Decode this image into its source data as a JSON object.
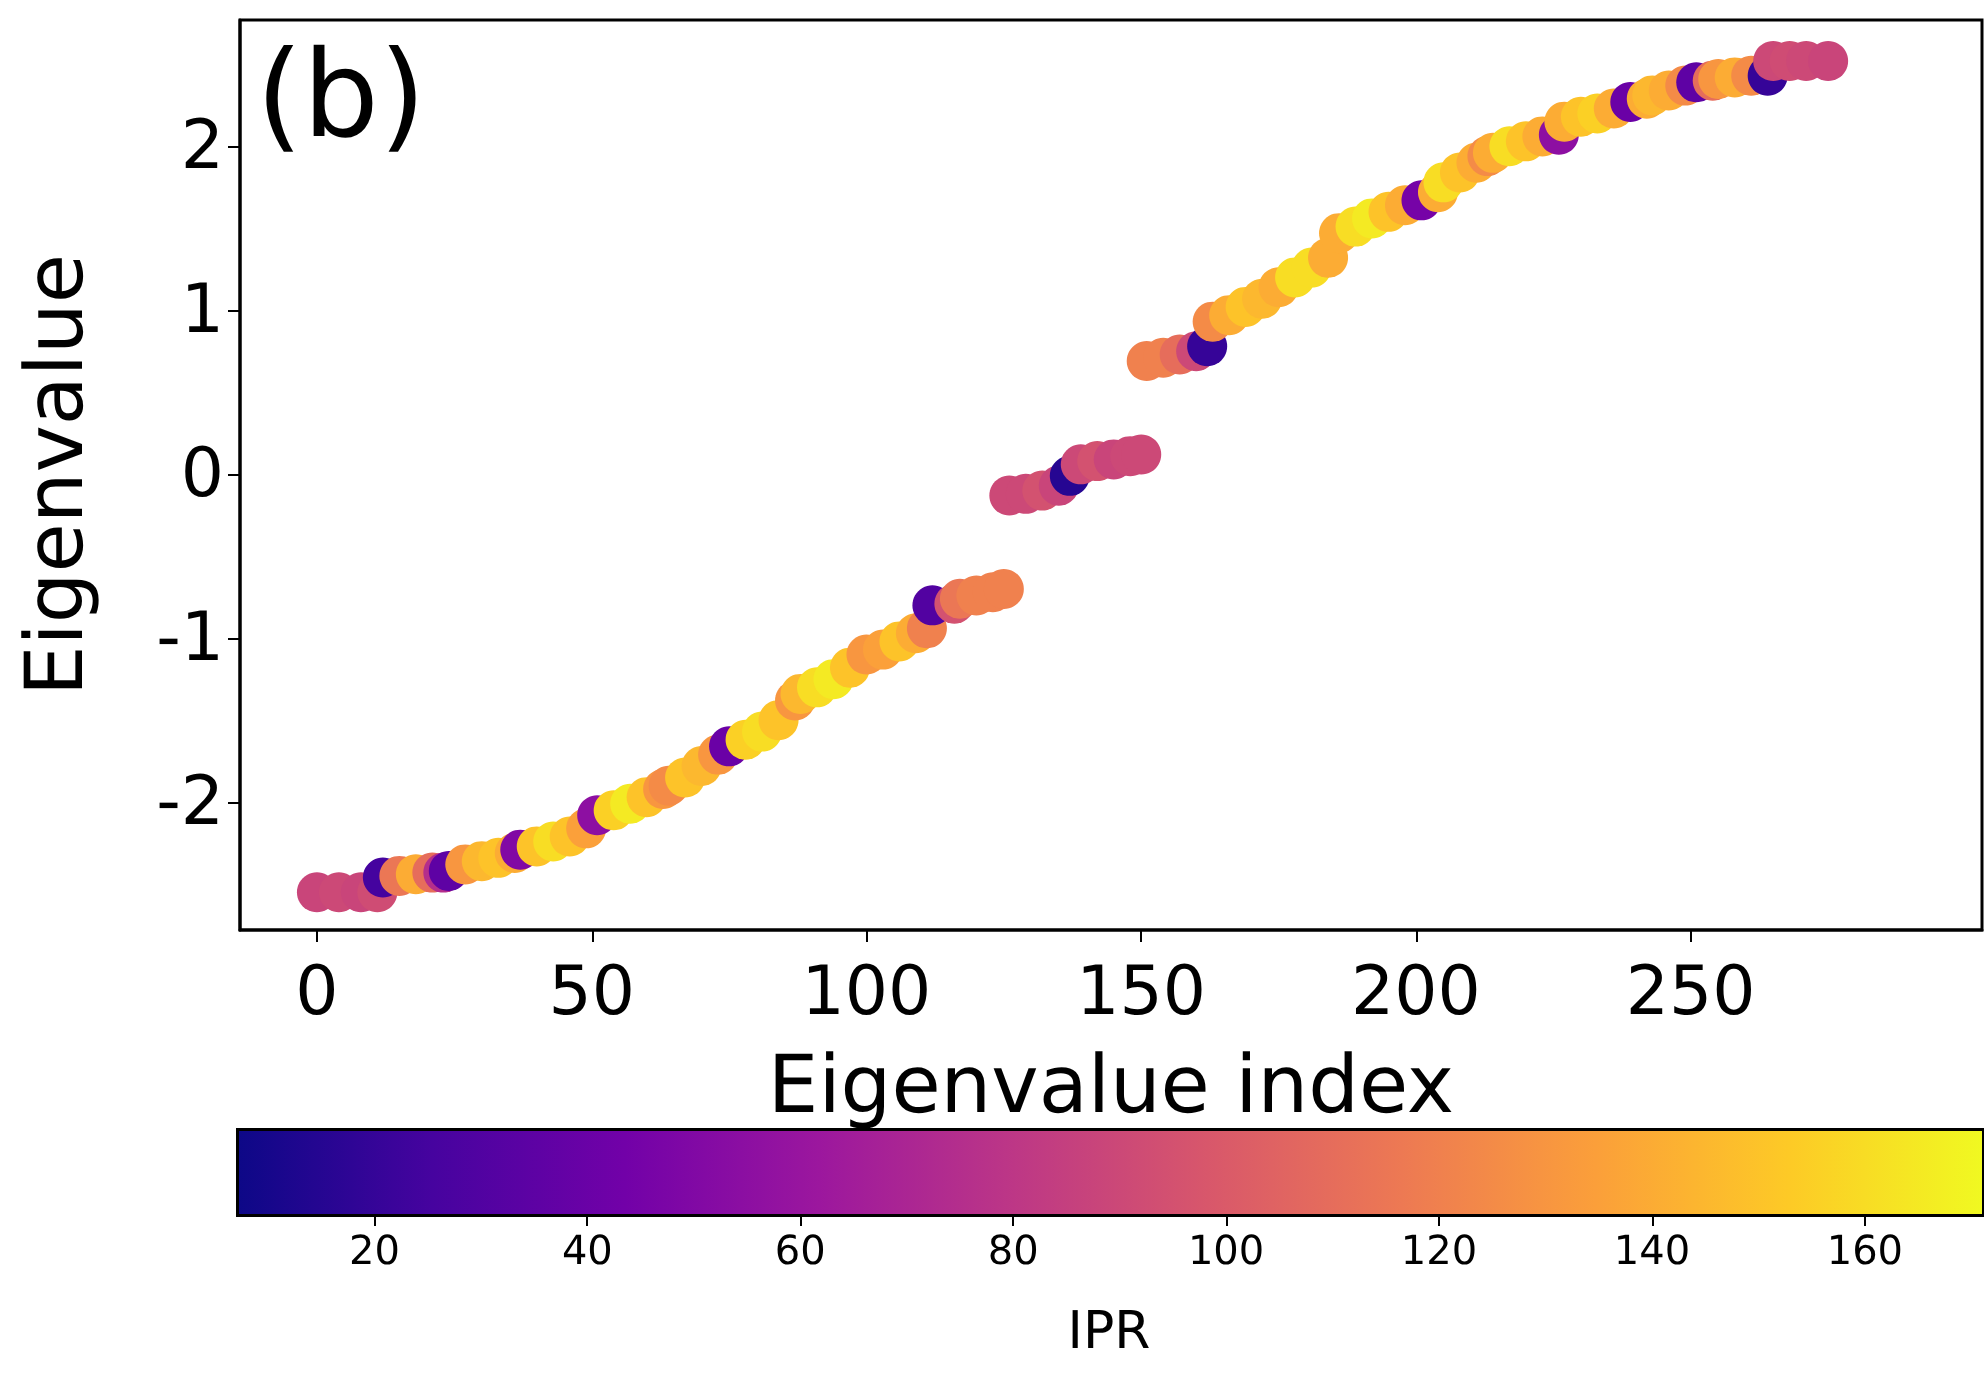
{
  "chart_data": {
    "type": "scatter",
    "xlabel": "Eigenvalue index",
    "ylabel": "Eigenvalue",
    "clabel": "IPR",
    "annotations": [
      "(b)"
    ],
    "x": [
      0,
      4,
      8,
      11,
      12,
      15,
      18,
      21,
      23,
      24,
      27,
      30,
      33,
      36,
      37,
      40,
      43,
      46,
      49,
      51,
      54,
      57,
      60,
      63,
      64,
      67,
      70,
      73,
      75,
      78,
      81,
      84,
      87,
      88,
      91,
      94,
      97,
      100,
      103,
      106,
      109,
      111,
      112,
      116,
      117,
      120,
      123,
      125,
      126,
      129,
      132,
      135,
      137,
      139,
      142,
      145,
      148,
      150,
      151,
      154,
      157,
      160,
      162,
      163,
      166,
      169,
      172,
      175,
      178,
      181,
      184,
      186,
      189,
      192,
      195,
      198,
      201,
      204,
      205,
      208,
      211,
      213,
      214,
      217,
      220,
      223,
      226,
      227,
      230,
      233,
      236,
      239,
      242,
      243,
      246,
      249,
      251,
      254,
      255,
      258,
      261,
      264,
      265,
      268,
      271,
      275
    ],
    "values": [
      -2.55,
      -2.55,
      -2.55,
      -2.55,
      -2.46,
      -2.45,
      -2.44,
      -2.43,
      -2.43,
      -2.42,
      -2.38,
      -2.36,
      -2.34,
      -2.31,
      -2.29,
      -2.27,
      -2.24,
      -2.21,
      -2.16,
      -2.08,
      -2.05,
      -2.01,
      -1.97,
      -1.92,
      -1.9,
      -1.85,
      -1.78,
      -1.71,
      -1.66,
      -1.62,
      -1.57,
      -1.5,
      -1.38,
      -1.34,
      -1.3,
      -1.25,
      -1.18,
      -1.1,
      -1.07,
      -1.02,
      -0.97,
      -0.94,
      -0.8,
      -0.79,
      -0.76,
      -0.74,
      -0.72,
      -0.7,
      -0.13,
      -0.12,
      -0.1,
      -0.07,
      -0.01,
      0.06,
      0.08,
      0.09,
      0.11,
      0.12,
      0.69,
      0.71,
      0.73,
      0.75,
      0.78,
      0.93,
      0.97,
      1.02,
      1.07,
      1.14,
      1.2,
      1.26,
      1.32,
      1.47,
      1.51,
      1.56,
      1.6,
      1.64,
      1.67,
      1.72,
      1.78,
      1.84,
      1.9,
      1.94,
      1.96,
      2.0,
      2.03,
      2.06,
      2.07,
      2.15,
      2.18,
      2.2,
      2.23,
      2.27,
      2.29,
      2.31,
      2.34,
      2.37,
      2.39,
      2.4,
      2.41,
      2.42,
      2.43,
      2.43,
      2.52,
      2.52,
      2.52,
      2.52
    ],
    "cvalues": [
      88,
      90,
      88,
      92,
      25,
      115,
      140,
      110,
      75,
      35,
      130,
      145,
      150,
      140,
      50,
      150,
      160,
      150,
      135,
      55,
      155,
      165,
      150,
      130,
      125,
      150,
      145,
      130,
      40,
      155,
      160,
      150,
      130,
      145,
      160,
      165,
      150,
      130,
      135,
      150,
      140,
      120,
      30,
      95,
      115,
      120,
      120,
      120,
      90,
      90,
      95,
      88,
      15,
      90,
      95,
      88,
      90,
      90,
      120,
      120,
      110,
      90,
      20,
      125,
      140,
      150,
      145,
      140,
      160,
      160,
      140,
      140,
      160,
      165,
      150,
      140,
      45,
      140,
      160,
      150,
      140,
      125,
      140,
      160,
      150,
      140,
      55,
      140,
      150,
      155,
      140,
      40,
      140,
      145,
      140,
      125,
      35,
      110,
      130,
      140,
      125,
      20,
      90,
      92,
      90,
      88
    ],
    "marker": "circle",
    "grid": false,
    "xlim": [
      -14,
      303
    ],
    "xticks": [
      0,
      50,
      100,
      150,
      200,
      250
    ],
    "ylim": [
      -2.78,
      2.77
    ],
    "yticks": [
      -2,
      -1,
      0,
      1,
      2
    ],
    "clim": [
      7,
      171
    ],
    "cticks": [
      20,
      40,
      60,
      80,
      100,
      120,
      140,
      160
    ]
  }
}
